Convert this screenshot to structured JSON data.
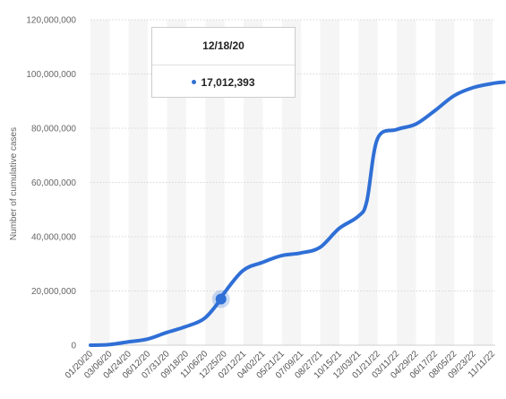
{
  "chart_data": {
    "type": "line",
    "ylabel": "Number of cumulative cases",
    "ylim": [
      0,
      120000000
    ],
    "y_ticks": [
      "0",
      "20,000,000",
      "40,000,000",
      "60,000,000",
      "80,000,000",
      "100,000,000",
      "120,000,000"
    ],
    "y_tick_values": [
      0,
      20000000,
      40000000,
      60000000,
      80000000,
      100000000,
      120000000
    ],
    "x_tick_labels": [
      "01/20/20",
      "03/06/20",
      "04/24/20",
      "06/12/20",
      "07/31/20",
      "09/18/20",
      "11/06/20",
      "12/25/20",
      "02/12/21",
      "04/02/21",
      "05/21/21",
      "07/09/21",
      "08/27/21",
      "10/15/21",
      "12/03/21",
      "01/21/22",
      "03/11/22",
      "04/29/22",
      "06/17/22",
      "08/05/22",
      "09/23/22",
      "11/11/22"
    ],
    "grid": true,
    "series": [
      {
        "color": "#2f6fd6",
        "x": [
          "01/20/20",
          "03/06/20",
          "04/24/20",
          "06/12/20",
          "07/31/20",
          "09/18/20",
          "11/06/20",
          "12/18/20",
          "12/25/20",
          "02/12/21",
          "04/02/21",
          "05/21/21",
          "07/09/21",
          "08/27/21",
          "10/15/21",
          "12/03/21",
          "12/25/21",
          "01/21/22",
          "03/11/22",
          "04/29/22",
          "06/17/22",
          "08/05/22",
          "09/23/22",
          "11/11/22",
          "12/10/22"
        ],
        "values": [
          0,
          200000,
          1200000,
          2200000,
          4600000,
          6800000,
          9900000,
          17012393,
          19000000,
          27500000,
          30500000,
          33000000,
          34000000,
          36000000,
          43000000,
          47500000,
          53000000,
          76000000,
          79500000,
          81500000,
          86500000,
          92000000,
          95000000,
          96500000,
          97000000
        ]
      }
    ],
    "highlight": {
      "date": "12/18/20",
      "value_label": "17,012,393",
      "index": 7
    }
  }
}
